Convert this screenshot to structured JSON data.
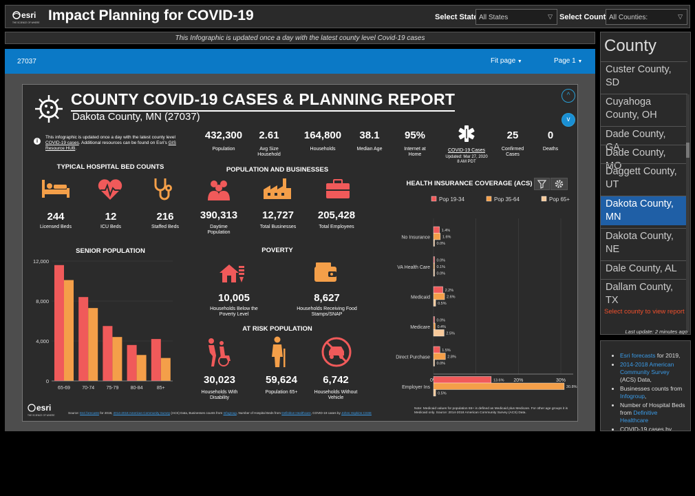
{
  "header": {
    "brand": "esri",
    "brand_tagline": "THE SCIENCE OF WHERE",
    "title": "Impact Planning for COVID-19",
    "state_label": "Select State:",
    "state_value": "All States",
    "county_label": "Select County:",
    "county_value": "All Counties:"
  },
  "banner": "This Infographic is updated once a day with the latest county level Covid-19 cases",
  "viewer": {
    "id": "27037",
    "fit": "Fit page",
    "page": "Page 1"
  },
  "report": {
    "title": "COUNTY COVID-19 CASES & PLANNING REPORT",
    "subtitle": "Dakota County, MN (27037)",
    "note_parts": {
      "a": "This infographic is updated once a day with the latest county level ",
      "b": "COVID-19 cases",
      "c": ". Additional resources can be found on Esri's ",
      "d": "GIS Resource HUB",
      "e": "."
    },
    "stats": [
      {
        "value": "432,300",
        "label": "Population"
      },
      {
        "value": "2.61",
        "label": "Avg Size Household"
      },
      {
        "value": "164,800",
        "label": "Households"
      },
      {
        "value": "38.1",
        "label": "Median Age"
      },
      {
        "value": "95%",
        "label": "Internet at Home"
      }
    ],
    "covid": {
      "link": "COVID-19 Cases",
      "updated": "Updated: Mar 27, 2020",
      "time": "8 AM PDT",
      "confirmed_value": "25",
      "confirmed_label": "Confirmed Cases",
      "deaths_value": "0",
      "deaths_label": "Deaths"
    },
    "hospital": {
      "title": "TYPICAL HOSPITAL BED COUNTS",
      "items": [
        {
          "value": "244",
          "label": "Licensed Beds"
        },
        {
          "value": "12",
          "label": "ICU Beds"
        },
        {
          "value": "216",
          "label": "Staffed Beds"
        }
      ]
    },
    "pop_business": {
      "title": "POPULATION AND BUSINESSES",
      "items": [
        {
          "value": "390,313",
          "label": "Daytime Population"
        },
        {
          "value": "12,727",
          "label": "Total Businesses"
        },
        {
          "value": "205,428",
          "label": "Total Employees"
        }
      ]
    },
    "poverty": {
      "title": "POVERTY",
      "items": [
        {
          "value": "10,005",
          "label": "Households Below the Poverty Level"
        },
        {
          "value": "8,627",
          "label": "Households Receiving Food Stamps/SNAP"
        }
      ]
    },
    "at_risk": {
      "title": "AT RISK POPULATION",
      "items": [
        {
          "value": "30,023",
          "label": "Households With Disability"
        },
        {
          "value": "59,624",
          "label": "Population 65+"
        },
        {
          "value": "6,742",
          "label": "Households Without Vehicle"
        }
      ]
    },
    "senior": {
      "title": "SENIOR POPULATION"
    },
    "insurance": {
      "title": "HEALTH INSURANCE COVERAGE (ACS)",
      "note": "Note: Medicaid values for population 65+ is defined as Medicaid plus Medicare. For other age groups it is Medicaid only.  Source: 2014-2018 American Community Survey (ACS) Data."
    },
    "source_parts": {
      "a": "Source: ",
      "b": "Esri forecasts",
      "c": " for 2019, ",
      "d": "2014-2018 American Community Survey",
      "e": " (ACS) Data, Businesses counts from ",
      "f": "Infogroup",
      "g": ", Number of Hospital Beds from ",
      "h": "Definitive Healthcare",
      "i": ", COVID-19 cases by ",
      "j": "Johns Hopkins CSSE"
    },
    "footer_brand": "esri",
    "footer_tagline": "THE SCIENCE OF WHERE"
  },
  "sidebar": {
    "title": "County",
    "counties": [
      "Custer County, SD",
      "Cuyahoga County, OH",
      "Dade County, GA",
      "Dade County, MO",
      "Daggett County, UT",
      "Dakota County, MN",
      "Dakota County, NE",
      "Dale County, AL",
      "Dallam County, TX"
    ],
    "select_msg": "Select county to view report",
    "last_update": "Last update: 2 minutes ago"
  },
  "sources": {
    "i1a": "Esri forecasts",
    "i1b": " for 2019,",
    "i2a": "2014-2018 American Community Survey",
    "i2b": " (ACS) Data,",
    "i3a": "Businesses counts from ",
    "i3b": "Infogroup",
    ",": ",",
    "i4a": "Number of Hospital Beds from ",
    "i4b": "Definitive Healthcare",
    "i5": "COVID-19 cases by"
  },
  "colors": {
    "red": "#f05a5a",
    "orange": "#f49f49",
    "peach": "#f7c99a",
    "blue": "#0b79c6"
  },
  "chart_data": [
    {
      "type": "bar",
      "title": "SENIOR POPULATION",
      "categories": [
        "65-69",
        "70-74",
        "75-79",
        "80-84",
        "85+"
      ],
      "series": [
        {
          "name": "Females",
          "values": [
            11600,
            8400,
            5500,
            3600,
            4200
          ]
        },
        {
          "name": "Males",
          "values": [
            10100,
            7300,
            4400,
            2600,
            2300
          ]
        }
      ],
      "ylim": [
        0,
        12000
      ],
      "yticks": [
        "0",
        "4,000",
        "8,000",
        "12,000"
      ],
      "legend": "bottom"
    },
    {
      "type": "bar",
      "orientation": "horizontal",
      "title": "HEALTH INSURANCE COVERAGE (ACS)",
      "categories": [
        "No Insurance",
        "VA Health Care",
        "Medicaid",
        "Medicare",
        "Direct Purchase",
        "Employer Ins"
      ],
      "series": [
        {
          "name": "Pop 19-34",
          "values": [
            1.4,
            0.0,
            2.2,
            0.0,
            1.5,
            13.6
          ],
          "labels": [
            "1.4%",
            "0.0%",
            "2.2%",
            "0.0%",
            "1.5%",
            "13.6%"
          ]
        },
        {
          "name": "Pop 35-64",
          "values": [
            1.6,
            0.1,
            2.6,
            0.4,
            2.8,
            30.8
          ],
          "labels": [
            "1.6%",
            "0.1%",
            "2.6%",
            "0.4%",
            "2.8%",
            "30.8%"
          ]
        },
        {
          "name": "Pop 65+",
          "values": [
            0.0,
            0.0,
            0.5,
            2.5,
            0.0,
            0.5
          ],
          "labels": [
            "0.0%",
            "0.0%",
            "0.5%",
            "2.5%",
            "0.0%",
            "0.5%"
          ]
        }
      ],
      "xlim": [
        0,
        35
      ],
      "xticks": [
        "0%",
        "10%",
        "20%",
        "30%"
      ],
      "legend": "top"
    }
  ]
}
